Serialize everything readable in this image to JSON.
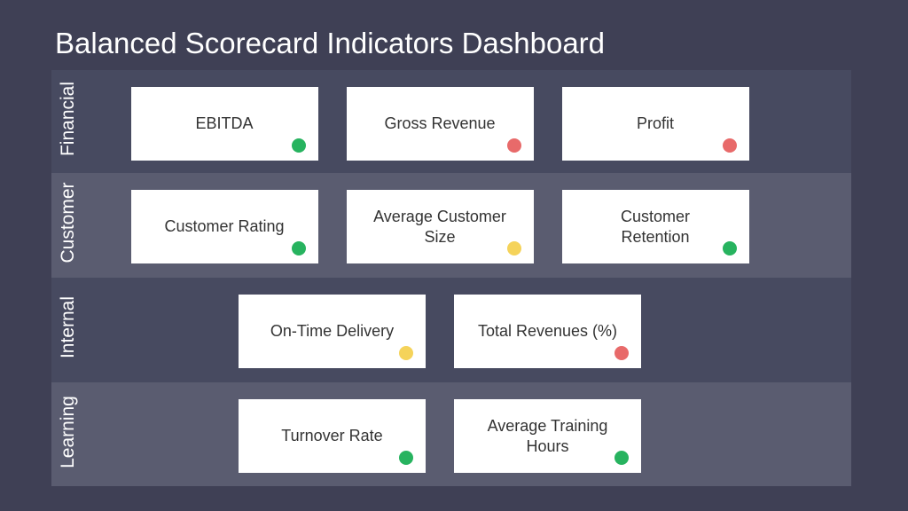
{
  "title": "Balanced Scorecard Indicators Dashboard",
  "rows": [
    {
      "label": "Financial",
      "cards": [
        {
          "lines": [
            "EBITDA"
          ],
          "color": "#27b35f"
        },
        {
          "lines": [
            "Gross Revenue"
          ],
          "color": "#e86a6a"
        },
        {
          "lines": [
            "Profit"
          ],
          "color": "#e86a6a"
        }
      ]
    },
    {
      "label": "Customer",
      "cards": [
        {
          "lines": [
            "Customer Rating"
          ],
          "color": "#27b35f"
        },
        {
          "lines": [
            "Average Customer",
            "Size"
          ],
          "color": "#f5d35a"
        },
        {
          "lines": [
            "Customer",
            "Retention"
          ],
          "color": "#27b35f"
        }
      ]
    },
    {
      "label": "Internal",
      "cards": [
        {
          "lines": [
            "On-Time Delivery"
          ],
          "color": "#f5d35a"
        },
        {
          "lines": [
            "Total Revenues (%)"
          ],
          "color": "#e86a6a"
        }
      ]
    },
    {
      "label": "Learning",
      "cards": [
        {
          "lines": [
            "Turnover Rate"
          ],
          "color": "#27b35f"
        },
        {
          "lines": [
            "Average Training",
            "Hours"
          ],
          "color": "#27b35f"
        }
      ]
    }
  ]
}
